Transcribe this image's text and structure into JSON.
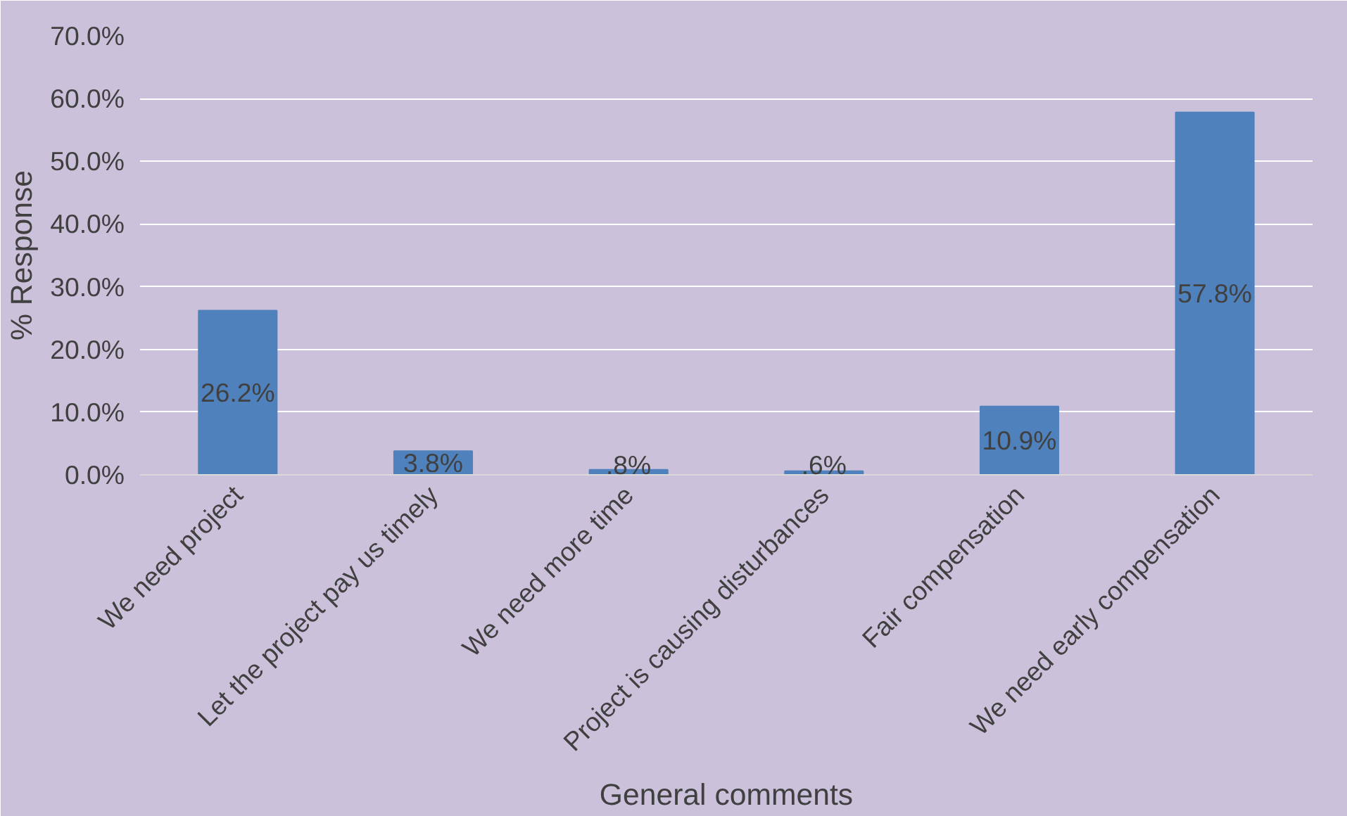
{
  "chart_data": {
    "type": "bar",
    "xlabel": "General comments",
    "ylabel": "% Response",
    "categories": [
      "We need project",
      "Let the project pay us timely",
      "We need more time",
      "Project is causing disturbances",
      "Fair compensation",
      "We need early compensation"
    ],
    "values": [
      26.2,
      3.8,
      0.8,
      0.6,
      10.9,
      57.8
    ],
    "value_labels": [
      "26.2%",
      "3.8%",
      ".8%",
      ".6%",
      "10.9%",
      "57.8%"
    ],
    "color": "#4f81bd",
    "ylim": [
      0,
      70
    ],
    "yticks": [
      {
        "value": 0,
        "label": "0.0%"
      },
      {
        "value": 10,
        "label": "10.0%"
      },
      {
        "value": 20,
        "label": "20.0%"
      },
      {
        "value": 30,
        "label": "30.0%"
      },
      {
        "value": 40,
        "label": "40.0%"
      },
      {
        "value": 50,
        "label": "50.0%"
      },
      {
        "value": 60,
        "label": "60.0%"
      },
      {
        "value": 70,
        "label": "70.0%"
      }
    ],
    "grid": "y"
  }
}
